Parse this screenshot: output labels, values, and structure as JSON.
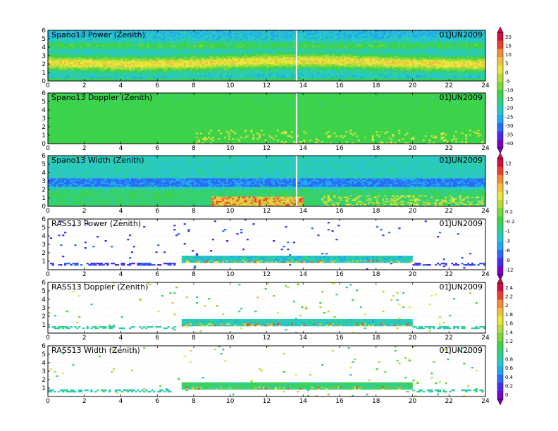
{
  "figure": {
    "date": "01JUN2009"
  },
  "chart_data": [
    {
      "type": "heatmap",
      "title": "Spano13 Power (Zenith)",
      "date": "01JUN2009",
      "field": "power",
      "x_ticks": [
        "0",
        "2",
        "4",
        "6",
        "8",
        "10",
        "12",
        "14",
        "16",
        "18",
        "20",
        "22",
        "24"
      ],
      "y_ticks": [
        "0",
        "1",
        "2",
        "3",
        "4",
        "5",
        "6"
      ],
      "xlim": [
        0,
        24
      ],
      "ylim": [
        0,
        6
      ],
      "colorbar_group": 0
    },
    {
      "type": "heatmap",
      "title": "Spano13 Doppler (Zenith)",
      "date": "01JUN2009",
      "field": "doppler",
      "x_ticks": [
        "0",
        "2",
        "4",
        "6",
        "8",
        "10",
        "12",
        "14",
        "16",
        "18",
        "20",
        "22",
        "24"
      ],
      "y_ticks": [
        "0",
        "1",
        "2",
        "3",
        "4",
        "5",
        "6"
      ],
      "xlim": [
        0,
        24
      ],
      "ylim": [
        0,
        6
      ],
      "colorbar_group": 0
    },
    {
      "type": "heatmap",
      "title": "Spano13 Width (Zenith)",
      "date": "01JUN2009",
      "field": "width",
      "x_ticks": [
        "0",
        "2",
        "4",
        "6",
        "8",
        "10",
        "12",
        "14",
        "16",
        "18",
        "20",
        "22",
        "24"
      ],
      "y_ticks": [
        "0",
        "1",
        "2",
        "3",
        "4",
        "5",
        "6"
      ],
      "xlim": [
        0,
        24
      ],
      "ylim": [
        0,
        6
      ],
      "colorbar_group": 1
    },
    {
      "type": "heatmap",
      "title": "RASS13 Power (Zenith)",
      "date": "01JUN2009",
      "field": "rass_power",
      "x_ticks": [
        "0",
        "2",
        "4",
        "6",
        "8",
        "10",
        "12",
        "14",
        "16",
        "18",
        "20",
        "22",
        "24"
      ],
      "y_ticks": [
        "1",
        "2",
        "3",
        "4",
        "5",
        "6"
      ],
      "xlim": [
        0,
        24
      ],
      "ylim": [
        0,
        6
      ],
      "colorbar_group": 1
    },
    {
      "type": "heatmap",
      "title": "RASS13 Doppler (Zenith)",
      "date": "01JUN2009",
      "field": "rass_doppler",
      "x_ticks": [
        "0",
        "2",
        "4",
        "6",
        "8",
        "10",
        "12",
        "14",
        "16",
        "18",
        "20",
        "22",
        "24"
      ],
      "y_ticks": [
        "1",
        "2",
        "3",
        "4",
        "5",
        "6"
      ],
      "xlim": [
        0,
        24
      ],
      "ylim": [
        0,
        6
      ],
      "colorbar_group": 2
    },
    {
      "type": "heatmap",
      "title": "RASS13 Width (Zenith)",
      "date": "01JUN2009",
      "field": "rass_width",
      "x_ticks": [
        "0",
        "2",
        "4",
        "6",
        "8",
        "10",
        "12",
        "14",
        "16",
        "18",
        "20",
        "22",
        "24"
      ],
      "y_ticks": [
        "1",
        "2",
        "3",
        "4",
        "5",
        "6"
      ],
      "xlim": [
        0,
        24
      ],
      "ylim": [
        0,
        6
      ],
      "colorbar_group": 2
    }
  ],
  "colorbars": [
    {
      "labels": [
        "20",
        "15",
        "10",
        "5",
        "0",
        "-5",
        "-10",
        "-15",
        "-20",
        "-25",
        "-30",
        "-35",
        "-40"
      ]
    },
    {
      "labels": [
        "12",
        "9",
        "6",
        "3",
        "1",
        "0.2",
        "-0.2",
        "-1",
        "-3",
        "-6",
        "-9",
        "-12"
      ]
    },
    {
      "labels": [
        "2.4",
        "2.2",
        "2",
        "1.8",
        "1.6",
        "1.4",
        "1.2",
        "1",
        "0.8",
        "0.6",
        "0.4",
        "0.2",
        "0"
      ]
    }
  ],
  "colors": {
    "palette": [
      "#7a00c8",
      "#4a2cf0",
      "#2a6cf8",
      "#20a8f0",
      "#28c8c8",
      "#30d08c",
      "#3cd24a",
      "#78d83c",
      "#b4dc3c",
      "#e6e63c",
      "#f0c040",
      "#f08c3c",
      "#e84030",
      "#d0103c"
    ],
    "background": "#ffffff",
    "axis": "#000000"
  }
}
